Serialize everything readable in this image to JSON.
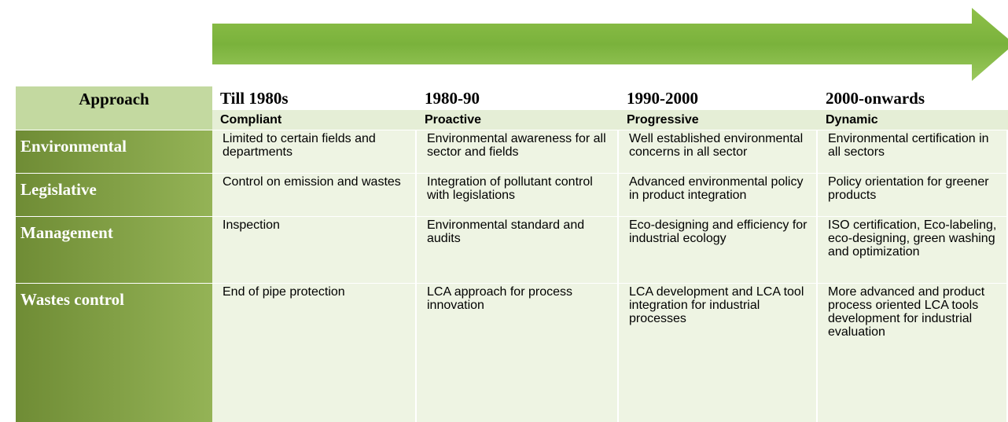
{
  "table": {
    "header": [
      "Approach",
      "Till 1980s",
      "1980-90",
      "1990-2000",
      "2000-onwards"
    ],
    "subheader": [
      "Compliant",
      "Proactive",
      "Progressive",
      "Dynamic"
    ],
    "rows": [
      {
        "label": "Environmental",
        "cells": [
          "Limited to certain fields and departments",
          "Environmental awareness for all sector and fields",
          "Well established environmental concerns in all sector",
          "Environmental certification in all sectors"
        ]
      },
      {
        "label": "Legislative",
        "cells": [
          "Control on emission and wastes",
          "Integration of pollutant control with legislations",
          "Advanced environmental policy in product integration",
          "Policy orientation for greener products"
        ]
      },
      {
        "label": "Management",
        "cells": [
          "Inspection",
          "Environmental standard and audits",
          "Eco-designing and efficiency for industrial ecology",
          "ISO certification, Eco-labeling, eco-designing, green washing and optimization"
        ]
      },
      {
        "label": "Wastes control",
        "cells": [
          "End of pipe protection",
          "LCA approach for process innovation",
          "LCA development and LCA tool integration for industrial processes",
          "More advanced and product process oriented LCA tools development for industrial evaluation"
        ]
      }
    ]
  }
}
